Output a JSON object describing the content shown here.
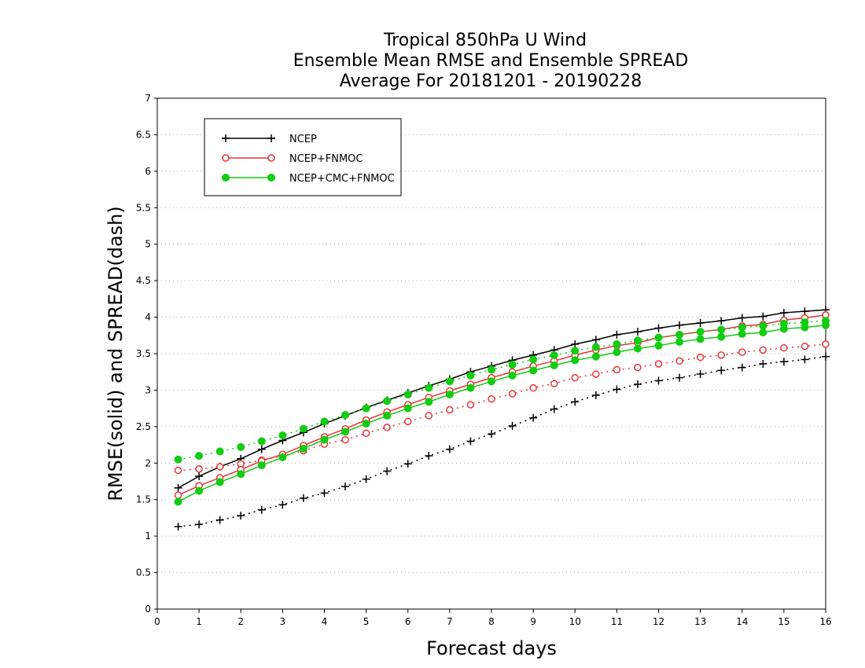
{
  "chart_data": {
    "type": "line",
    "title": [
      "Tropical 850hPa U Wind",
      "Ensemble Mean RMSE and Ensemble SPREAD",
      "Average For 20181201 - 20190228"
    ],
    "xlabel": "Forecast days",
    "ylabel": "RMSE(solid) and SPREAD(dash)",
    "xlim": [
      0,
      16
    ],
    "ylim": [
      0,
      7
    ],
    "xticks": [
      0,
      1,
      2,
      3,
      4,
      5,
      6,
      7,
      8,
      9,
      10,
      11,
      12,
      13,
      14,
      15,
      16
    ],
    "yticks": [
      0,
      0.5,
      1,
      1.5,
      2,
      2.5,
      3,
      3.5,
      4,
      4.5,
      5,
      5.5,
      6,
      6.5,
      7
    ],
    "xtick_labels": [
      "0",
      "1",
      "2",
      "3",
      "4",
      "5",
      "6",
      "7",
      "8",
      "9",
      "10",
      "11",
      "12",
      "13",
      "14",
      "15",
      "16"
    ],
    "ytick_labels": [
      "0",
      "0.5",
      "1",
      "1.5",
      "2",
      "2.5",
      "3",
      "3.5",
      "4",
      "4.5",
      "5",
      "5.5",
      "6",
      "6.5",
      "7"
    ],
    "grid": "horizontal dotted",
    "legend_position": "top-left",
    "x": [
      0.5,
      1,
      1.5,
      2,
      2.5,
      3,
      3.5,
      4,
      4.5,
      5,
      5.5,
      6,
      6.5,
      7,
      7.5,
      8,
      8.5,
      9,
      9.5,
      10,
      10.5,
      11,
      11.5,
      12,
      12.5,
      13,
      13.5,
      14,
      14.5,
      15,
      15.5,
      16
    ],
    "series": [
      {
        "name": "NCEP",
        "color": "#000000",
        "marker": "plus",
        "rmse": [
          1.66,
          1.82,
          1.95,
          2.06,
          2.19,
          2.31,
          2.42,
          2.54,
          2.65,
          2.76,
          2.86,
          2.96,
          3.06,
          3.15,
          3.25,
          3.33,
          3.41,
          3.48,
          3.55,
          3.63,
          3.69,
          3.76,
          3.8,
          3.85,
          3.89,
          3.92,
          3.95,
          3.99,
          4.01,
          4.06,
          4.08,
          4.1
        ],
        "spread": [
          1.13,
          1.16,
          1.22,
          1.28,
          1.36,
          1.43,
          1.52,
          1.59,
          1.68,
          1.78,
          1.89,
          1.99,
          2.1,
          2.19,
          2.3,
          2.4,
          2.51,
          2.62,
          2.74,
          2.84,
          2.93,
          3.01,
          3.08,
          3.13,
          3.17,
          3.22,
          3.27,
          3.31,
          3.36,
          3.39,
          3.42,
          3.46
        ]
      },
      {
        "name": "NCEP+FNMOC",
        "color": "#e8343a",
        "marker": "open-circle",
        "rmse": [
          1.56,
          1.69,
          1.8,
          1.91,
          2.03,
          2.12,
          2.24,
          2.36,
          2.47,
          2.59,
          2.7,
          2.8,
          2.9,
          2.99,
          3.08,
          3.17,
          3.25,
          3.33,
          3.4,
          3.48,
          3.55,
          3.61,
          3.65,
          3.72,
          3.76,
          3.8,
          3.83,
          3.88,
          3.9,
          3.96,
          3.99,
          4.03
        ],
        "spread": [
          1.9,
          1.92,
          1.95,
          1.99,
          2.04,
          2.1,
          2.17,
          2.26,
          2.32,
          2.41,
          2.49,
          2.57,
          2.65,
          2.73,
          2.8,
          2.88,
          2.95,
          3.03,
          3.09,
          3.17,
          3.22,
          3.28,
          3.31,
          3.36,
          3.4,
          3.45,
          3.48,
          3.52,
          3.55,
          3.58,
          3.6,
          3.63
        ]
      },
      {
        "name": "NCEP+CMC+FNMOC",
        "color": "#11cc11",
        "marker": "filled-circle",
        "rmse": [
          1.47,
          1.62,
          1.74,
          1.85,
          1.97,
          2.08,
          2.2,
          2.32,
          2.43,
          2.54,
          2.65,
          2.75,
          2.84,
          2.94,
          3.03,
          3.12,
          3.2,
          3.27,
          3.34,
          3.41,
          3.46,
          3.52,
          3.57,
          3.61,
          3.66,
          3.7,
          3.73,
          3.77,
          3.79,
          3.84,
          3.86,
          3.89
        ],
        "spread": [
          2.05,
          2.1,
          2.16,
          2.22,
          2.3,
          2.38,
          2.47,
          2.57,
          2.66,
          2.75,
          2.85,
          2.94,
          3.03,
          3.12,
          3.2,
          3.28,
          3.35,
          3.42,
          3.48,
          3.54,
          3.59,
          3.63,
          3.68,
          3.72,
          3.76,
          3.8,
          3.83,
          3.86,
          3.88,
          3.91,
          3.93,
          3.95
        ]
      }
    ]
  }
}
